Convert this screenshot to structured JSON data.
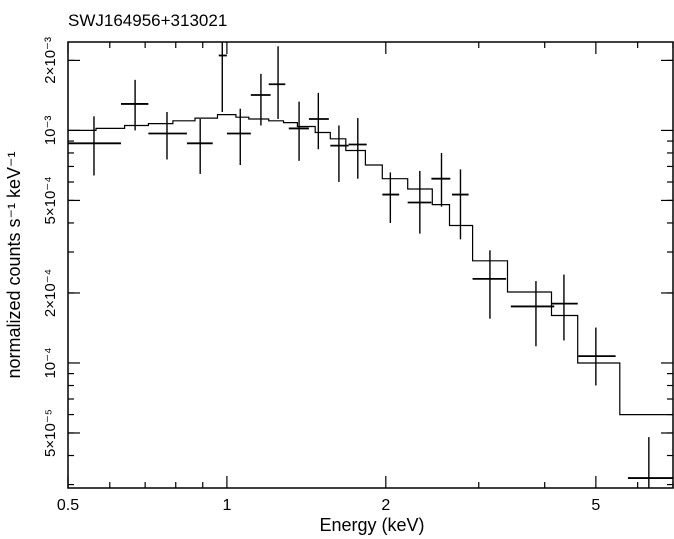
{
  "chart_data": {
    "type": "scatter",
    "title": "SWJ164956+313021",
    "xlabel": "Energy (keV)",
    "ylabel": "normalized counts s⁻¹ keV⁻¹",
    "xscale": "log",
    "yscale": "log",
    "xlim": [
      0.5,
      7.0
    ],
    "ylim": [
      2.9e-05,
      0.0024
    ],
    "x_ticks": [
      {
        "value": 0.5,
        "label": "0.5"
      },
      {
        "value": 1,
        "label": "1"
      },
      {
        "value": 2,
        "label": "2"
      },
      {
        "value": 5,
        "label": "5"
      }
    ],
    "y_ticks": [
      {
        "value": 5e-05,
        "label": "5×10⁻⁵"
      },
      {
        "value": 0.0001,
        "label": "10⁻⁴"
      },
      {
        "value": 0.0002,
        "label": "2×10⁻⁴"
      },
      {
        "value": 0.0005,
        "label": "5×10⁻⁴"
      },
      {
        "value": 0.001,
        "label": "10⁻³"
      },
      {
        "value": 0.002,
        "label": "2×10⁻³"
      }
    ],
    "grid": false,
    "series": [
      {
        "name": "",
        "kind": "data-points",
        "color": "#000000",
        "points": [
          {
            "x": 0.56,
            "xlo": 0.5,
            "xhi": 0.63,
            "y": 0.00088,
            "ylo": 0.00064,
            "yhi": 0.00115
          },
          {
            "x": 0.67,
            "xlo": 0.63,
            "xhi": 0.71,
            "y": 0.0013,
            "ylo": 0.001,
            "yhi": 0.00165
          },
          {
            "x": 0.77,
            "xlo": 0.71,
            "xhi": 0.84,
            "y": 0.00097,
            "ylo": 0.00075,
            "yhi": 0.0012
          },
          {
            "x": 0.89,
            "xlo": 0.84,
            "xhi": 0.94,
            "y": 0.00088,
            "ylo": 0.00065,
            "yhi": 0.00112
          },
          {
            "x": 0.98,
            "xlo": 0.965,
            "xhi": 1.0,
            "y": 0.0021,
            "ylo": 0.0012,
            "yhi": 0.0024
          },
          {
            "x": 1.06,
            "xlo": 1.0,
            "xhi": 1.11,
            "y": 0.00097,
            "ylo": 0.00071,
            "yhi": 0.00124
          },
          {
            "x": 1.16,
            "xlo": 1.11,
            "xhi": 1.21,
            "y": 0.00142,
            "ylo": 0.00105,
            "yhi": 0.00175
          },
          {
            "x": 1.25,
            "xlo": 1.2,
            "xhi": 1.29,
            "y": 0.00158,
            "ylo": 0.00112,
            "yhi": 0.0023
          },
          {
            "x": 1.37,
            "xlo": 1.31,
            "xhi": 1.43,
            "y": 0.00102,
            "ylo": 0.00074,
            "yhi": 0.00133
          },
          {
            "x": 1.49,
            "xlo": 1.43,
            "xhi": 1.56,
            "y": 0.00112,
            "ylo": 0.00083,
            "yhi": 0.00145
          },
          {
            "x": 1.63,
            "xlo": 1.57,
            "xhi": 1.7,
            "y": 0.00086,
            "ylo": 0.0006,
            "yhi": 0.00105
          },
          {
            "x": 1.77,
            "xlo": 1.7,
            "xhi": 1.84,
            "y": 0.00087,
            "ylo": 0.00062,
            "yhi": 0.00113
          },
          {
            "x": 2.04,
            "xlo": 1.97,
            "xhi": 2.12,
            "y": 0.00053,
            "ylo": 0.0004,
            "yhi": 0.00066
          },
          {
            "x": 2.32,
            "xlo": 2.2,
            "xhi": 2.44,
            "y": 0.00049,
            "ylo": 0.00036,
            "yhi": 0.00067
          },
          {
            "x": 2.55,
            "xlo": 2.44,
            "xhi": 2.65,
            "y": 0.00062,
            "ylo": 0.00047,
            "yhi": 0.0008
          },
          {
            "x": 2.77,
            "xlo": 2.67,
            "xhi": 2.87,
            "y": 0.00053,
            "ylo": 0.00034,
            "yhi": 0.00068
          },
          {
            "x": 3.15,
            "xlo": 2.92,
            "xhi": 3.38,
            "y": 0.00023,
            "ylo": 0.000155,
            "yhi": 0.000305
          },
          {
            "x": 3.85,
            "xlo": 3.45,
            "xhi": 4.17,
            "y": 0.000175,
            "ylo": 0.000118,
            "yhi": 0.000225
          },
          {
            "x": 4.35,
            "xlo": 4.12,
            "xhi": 4.62,
            "y": 0.00018,
            "ylo": 0.000125,
            "yhi": 0.00024
          },
          {
            "x": 5.0,
            "xlo": 4.63,
            "xhi": 5.45,
            "y": 0.000107,
            "ylo": 8e-05,
            "yhi": 0.000142
          },
          {
            "x": 6.3,
            "xlo": 5.75,
            "xhi": 7.0,
            "y": 3.2e-05,
            "ylo": 2.9e-05,
            "yhi": 4.8e-05
          }
        ]
      },
      {
        "name": "",
        "kind": "model-step",
        "color": "#000000",
        "steps": [
          {
            "x0": 0.5,
            "x1": 0.565,
            "y": 0.001
          },
          {
            "x0": 0.565,
            "x1": 0.64,
            "y": 0.00102
          },
          {
            "x0": 0.64,
            "x1": 0.71,
            "y": 0.00105
          },
          {
            "x0": 0.71,
            "x1": 0.79,
            "y": 0.00107
          },
          {
            "x0": 0.79,
            "x1": 0.87,
            "y": 0.0011
          },
          {
            "x0": 0.87,
            "x1": 0.96,
            "y": 0.00113
          },
          {
            "x0": 0.96,
            "x1": 1.04,
            "y": 0.00117
          },
          {
            "x0": 1.04,
            "x1": 1.1,
            "y": 0.00114
          },
          {
            "x0": 1.1,
            "x1": 1.2,
            "y": 0.00112
          },
          {
            "x0": 1.2,
            "x1": 1.28,
            "y": 0.0011
          },
          {
            "x0": 1.28,
            "x1": 1.36,
            "y": 0.00108
          },
          {
            "x0": 1.36,
            "x1": 1.47,
            "y": 0.00104
          },
          {
            "x0": 1.47,
            "x1": 1.57,
            "y": 0.00098
          },
          {
            "x0": 1.57,
            "x1": 1.68,
            "y": 0.00092
          },
          {
            "x0": 1.68,
            "x1": 1.83,
            "y": 0.00082
          },
          {
            "x0": 1.83,
            "x1": 1.97,
            "y": 0.00071
          },
          {
            "x0": 1.97,
            "x1": 2.2,
            "y": 0.00062
          },
          {
            "x0": 2.2,
            "x1": 2.45,
            "y": 0.00056
          },
          {
            "x0": 2.45,
            "x1": 2.64,
            "y": 0.00048
          },
          {
            "x0": 2.64,
            "x1": 2.92,
            "y": 0.00039
          },
          {
            "x0": 2.92,
            "x1": 3.4,
            "y": 0.000275
          },
          {
            "x0": 3.4,
            "x1": 4.12,
            "y": 0.000202
          },
          {
            "x0": 4.12,
            "x1": 4.62,
            "y": 0.00016
          },
          {
            "x0": 4.62,
            "x1": 5.55,
            "y": 0.0001
          },
          {
            "x0": 5.55,
            "x1": 7.0,
            "y": 6e-05
          }
        ]
      }
    ]
  }
}
